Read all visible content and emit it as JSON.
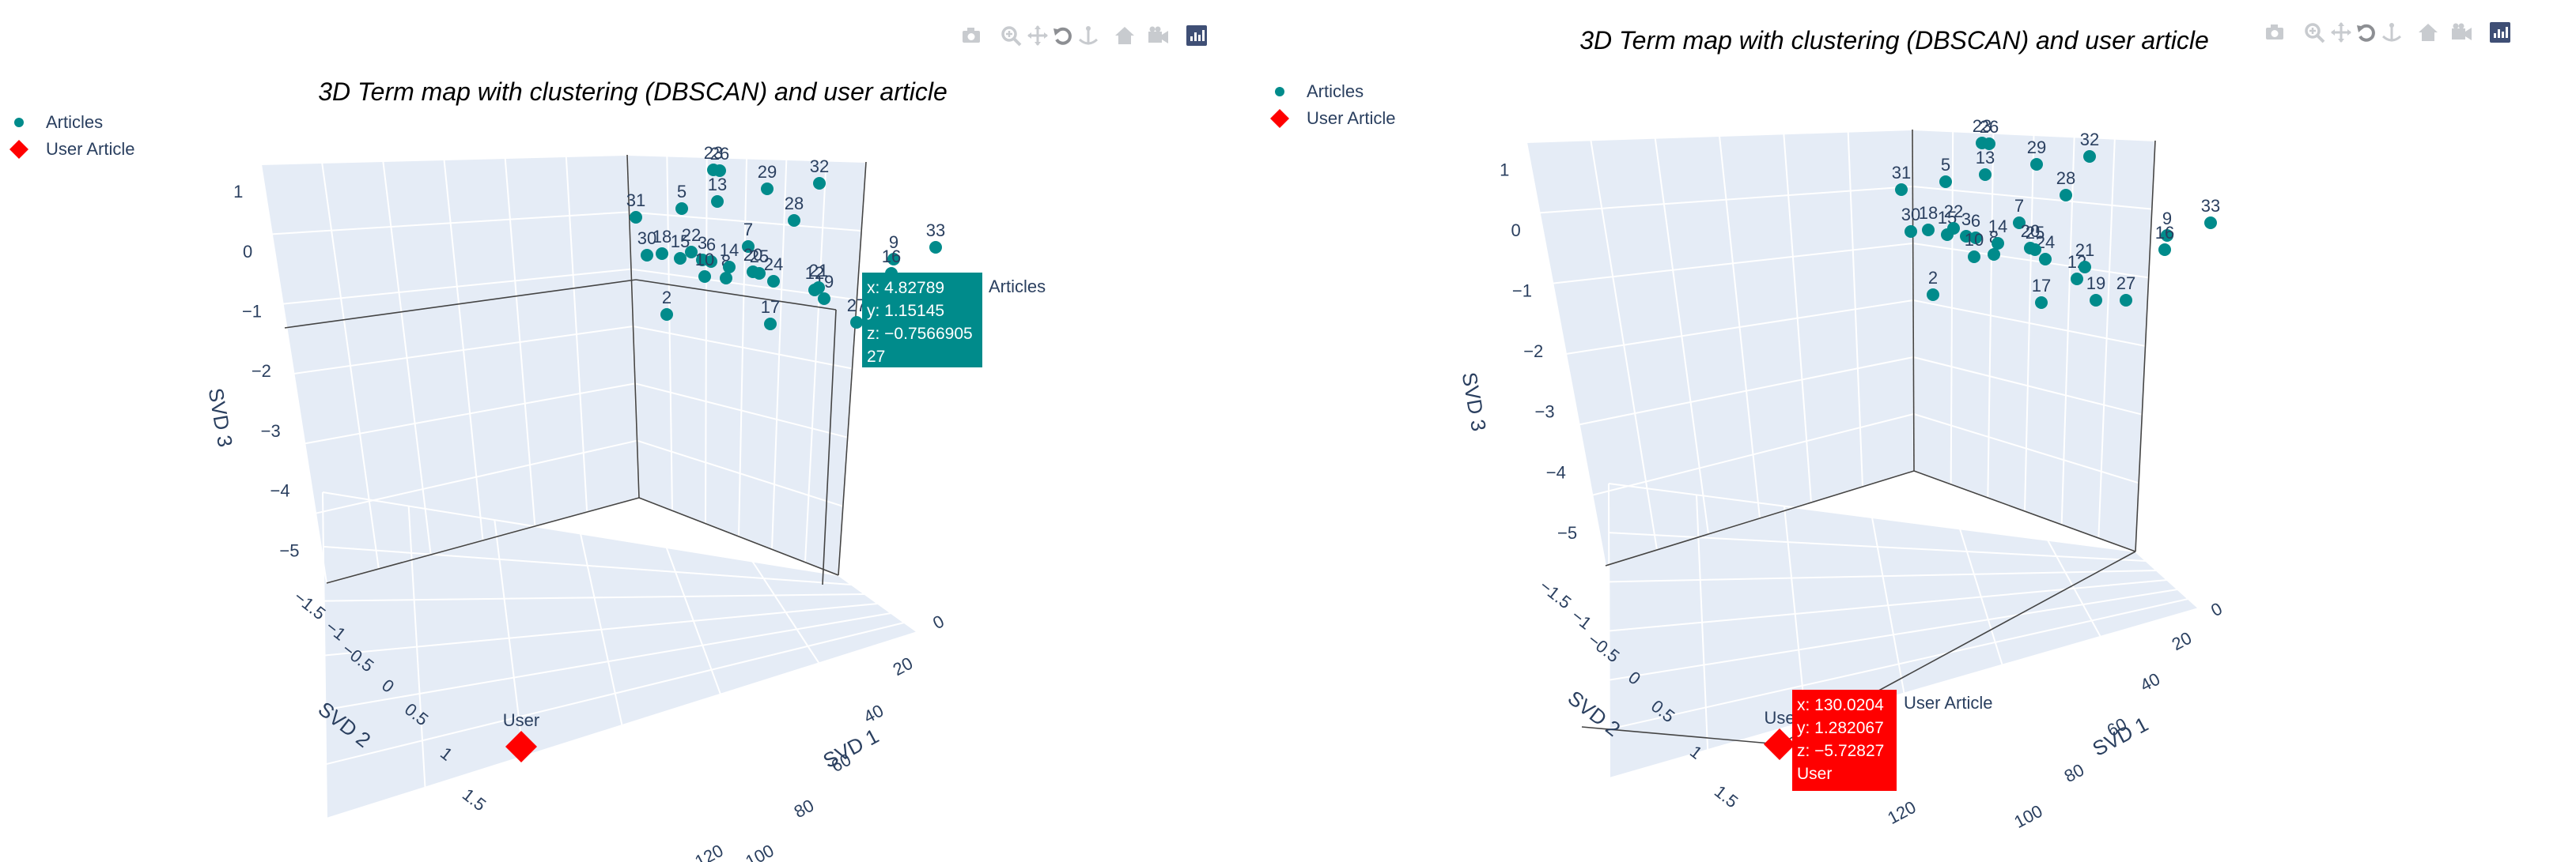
{
  "colors": {
    "articles": "#008b8b",
    "user": "#ff0000",
    "pane": "#e5ecf6",
    "grid": "#ffffff",
    "axis": "#444444",
    "text": "#2a3f5f"
  },
  "toolbar_icons": [
    "camera-icon",
    "zoom-icon",
    "pan-icon",
    "orbit-icon",
    "turntable-icon",
    "home-icon",
    "camera-view-icon",
    "plotly-logo-icon"
  ],
  "chart_data": [
    {
      "type": "scatter3d",
      "title": "3D Term map with clustering (DBSCAN) and user article",
      "xlabel": "SVD 1",
      "ylabel": "SVD 2",
      "zlabel": "SVD 3",
      "x_ticks": [
        "0",
        "20",
        "40",
        "60",
        "80",
        "100",
        "120"
      ],
      "y_ticks": [
        "−1.5",
        "−1",
        "−0.5",
        "0",
        "0.5",
        "1",
        "1.5"
      ],
      "z_ticks": [
        "1",
        "0",
        "−1",
        "−2",
        "−3",
        "−4",
        "−5"
      ],
      "legend": {
        "placement": "top-left",
        "items": [
          {
            "name": "Articles",
            "symbol": "circle"
          },
          {
            "name": "User Article",
            "symbol": "diamond"
          }
        ]
      },
      "hover": {
        "x": "x: 4.82789",
        "y": "y: 1.15145",
        "z": "z: −0.7566905",
        "label": "27",
        "trace": "Articles"
      },
      "user_label": "User",
      "series": [
        {
          "name": "Articles",
          "labels": [
            "2",
            "3",
            "5",
            "6",
            "7",
            "8",
            "9",
            "10",
            "12",
            "13",
            "14",
            "15",
            "16",
            "17",
            "18",
            "19",
            "20",
            "21",
            "22",
            "23",
            "24",
            "25",
            "26",
            "27",
            "28",
            "29",
            "30",
            "31",
            "32",
            "33"
          ]
        },
        {
          "name": "User Article",
          "labels": [
            "User"
          ],
          "points": [
            {
              "x": 130.0204,
              "y": 1.282067,
              "z": -5.72827
            }
          ]
        }
      ]
    },
    {
      "type": "scatter3d",
      "title": "3D Term map with clustering (DBSCAN) and user article",
      "xlabel": "SVD 1",
      "ylabel": "SVD 2",
      "zlabel": "SVD 3",
      "x_ticks": [
        "0",
        "20",
        "40",
        "60",
        "80",
        "100",
        "120"
      ],
      "y_ticks": [
        "−1.5",
        "−1",
        "−0.5",
        "0",
        "0.5",
        "1",
        "1.5"
      ],
      "z_ticks": [
        "1",
        "0",
        "−1",
        "−2",
        "−3",
        "−4",
        "−5"
      ],
      "legend": {
        "placement": "top-left",
        "items": [
          {
            "name": "Articles",
            "symbol": "circle"
          },
          {
            "name": "User Article",
            "symbol": "diamond"
          }
        ]
      },
      "hover": {
        "x": "x: 130.0204",
        "y": "y: 1.282067",
        "z": "z: −5.72827",
        "label": "User",
        "trace": "User Article"
      },
      "user_label": "Use",
      "series": [
        {
          "name": "Articles",
          "labels": [
            "2",
            "3",
            "5",
            "6",
            "7",
            "8",
            "9",
            "10",
            "12",
            "13",
            "14",
            "15",
            "16",
            "17",
            "18",
            "19",
            "20",
            "21",
            "22",
            "23",
            "24",
            "25",
            "26",
            "27",
            "28",
            "29",
            "30",
            "31",
            "32",
            "33"
          ]
        },
        {
          "name": "User Article",
          "labels": [
            "User"
          ],
          "points": [
            {
              "x": 130.0204,
              "y": 1.282067,
              "z": -5.72827
            }
          ]
        }
      ]
    }
  ]
}
